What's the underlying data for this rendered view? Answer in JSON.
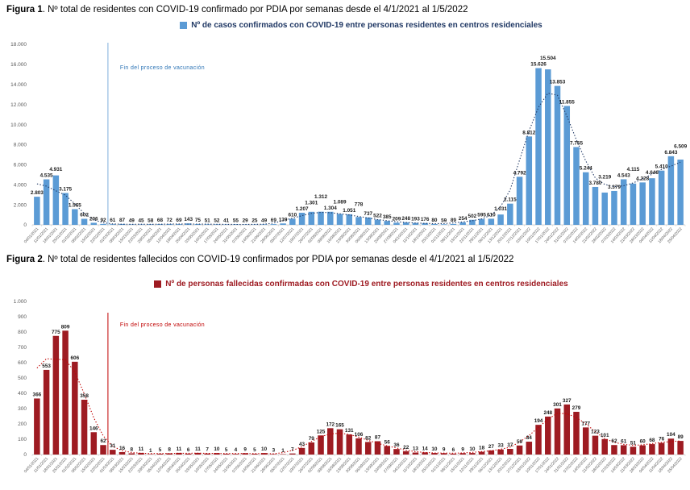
{
  "figures": [
    {
      "label": "Figura 1",
      "title_rest": ". Nº total de residentes con COVID-19 confirmado por PDIA por semanas desde el 4/1/2021 al 1/5/2022"
    },
    {
      "label": "Figura 2",
      "title_rest": ". Nº total de residentes fallecidos con COVID-19 confirmados por PDIA por semanas desde el 4/1/2021 al 1/5/2022"
    }
  ],
  "chart_data": [
    {
      "type": "bar",
      "legend": "Nº de casos confirmados con COVID-19 entre personas residentes en centros residenciales",
      "legend_position": "top",
      "grid": false,
      "xlabel": "",
      "ylabel": "",
      "ylim": [
        0,
        18000
      ],
      "ytick_labels": [
        "0",
        "2.000",
        "4.000",
        "6.000",
        "8.000",
        "10.000",
        "12.000",
        "14.000",
        "16.000",
        "18.000"
      ],
      "annotation": "Fin del proceso de vacunación",
      "vline_after_index": 8,
      "trendline": "dotted smoothed trend over weekly values",
      "colors": {
        "bar": "#5b9bd5",
        "trend": "#203864",
        "vline": "#7fafdc",
        "annotation": "#2e75b6",
        "legend_text": "#203864",
        "axis_text": "#595959",
        "data_label": "#1a1a1a"
      },
      "categories": [
        "04/01/2021",
        "11/01/2021",
        "18/01/2021",
        "25/01/2021",
        "01/02/2021",
        "08/02/2021",
        "15/02/2021",
        "22/02/2021",
        "01/03/2021",
        "08/03/2021",
        "15/03/2021",
        "22/03/2021",
        "29/03/2021",
        "05/04/2021",
        "12/04/2021",
        "19/04/2021",
        "26/04/2021",
        "03/05/2021",
        "10/05/2021",
        "17/05/2021",
        "24/05/2021",
        "31/05/2021",
        "07/06/2021",
        "14/06/2021",
        "21/06/2021",
        "28/06/2021",
        "05/07/2021",
        "12/07/2021",
        "19/07/2021",
        "26/07/2021",
        "02/08/2021",
        "09/08/2021",
        "16/08/2021",
        "23/08/2021",
        "30/08/2021",
        "06/09/2021",
        "13/09/2021",
        "20/09/2021",
        "27/09/2021",
        "04/10/2021",
        "11/10/2021",
        "18/10/2021",
        "25/10/2021",
        "01/11/2021",
        "08/11/2021",
        "15/11/2021",
        "22/11/2021",
        "29/11/2021",
        "06/12/2021",
        "13/12/2021",
        "20/12/2021",
        "27/12/2021",
        "03/01/2022",
        "10/01/2022",
        "17/01/2022",
        "24/01/2022",
        "31/01/2022",
        "07/02/2022",
        "14/02/2022",
        "21/02/2022",
        "28/02/2022",
        "07/03/2022",
        "14/03/2022",
        "21/03/2022",
        "28/03/2022",
        "04/04/2022",
        "11/04/2022",
        "18/04/2022",
        "25/04/2022"
      ],
      "values": [
        2803,
        4535,
        4931,
        3175,
        1565,
        602,
        206,
        92,
        61,
        87,
        49,
        45,
        58,
        68,
        72,
        69,
        143,
        75,
        51,
        52,
        41,
        55,
        29,
        25,
        49,
        69,
        139,
        610,
        1207,
        1301,
        1312,
        1304,
        1089,
        1051,
        778,
        737,
        522,
        385,
        209,
        248,
        193,
        176,
        80,
        59,
        89,
        254,
        502,
        595,
        610,
        1031,
        2115,
        4792,
        8812,
        15626,
        15504,
        13853,
        11855,
        7755,
        5244,
        3780,
        3219,
        3379,
        4543,
        4115,
        4228,
        4646,
        5410,
        6843,
        6509
      ]
    },
    {
      "type": "bar",
      "legend": "Nº de personas fallecidas confirmadas con COVID-19 entre personas residentes en centros residenciales",
      "legend_position": "top",
      "grid": false,
      "xlabel": "",
      "ylabel": "",
      "ylim": [
        0,
        1000
      ],
      "ytick_labels": [
        "0",
        "100",
        "200",
        "300",
        "400",
        "500",
        "600",
        "700",
        "800",
        "900",
        "1.000"
      ],
      "annotation": "Fin del proceso de vacunación",
      "vline_after_index": 8,
      "trendline": "dotted smoothed trend over weekly values",
      "colors": {
        "bar": "#9e1b22",
        "trend": "#c00000",
        "vline": "#c00000",
        "annotation": "#c00000",
        "legend_text": "#9e1b22",
        "axis_text": "#595959",
        "data_label": "#1a1a1a"
      },
      "categories": [
        "04/01/2021",
        "11/01/2021",
        "18/01/2021",
        "25/01/2021",
        "01/02/2021",
        "08/02/2021",
        "15/02/2021",
        "22/02/2021",
        "01/03/2021",
        "08/03/2021",
        "15/03/2021",
        "22/03/2021",
        "29/03/2021",
        "05/04/2021",
        "12/04/2021",
        "19/04/2021",
        "26/04/2021",
        "03/05/2021",
        "10/05/2021",
        "17/05/2021",
        "24/05/2021",
        "31/05/2021",
        "07/06/2021",
        "14/06/2021",
        "21/06/2021",
        "28/06/2021",
        "05/07/2021",
        "12/07/2021",
        "19/07/2021",
        "26/07/2021",
        "02/08/2021",
        "09/08/2021",
        "16/08/2021",
        "23/08/2021",
        "30/08/2021",
        "06/09/2021",
        "13/09/2021",
        "20/09/2021",
        "27/09/2021",
        "04/10/2021",
        "11/10/2021",
        "18/10/2021",
        "25/10/2021",
        "01/11/2021",
        "08/11/2021",
        "15/11/2021",
        "22/11/2021",
        "29/11/2021",
        "06/12/2021",
        "13/12/2021",
        "20/12/2021",
        "27/12/2021",
        "03/01/2022",
        "10/01/2022",
        "17/01/2022",
        "24/01/2022",
        "31/01/2022",
        "07/02/2022",
        "14/02/2022",
        "21/02/2022",
        "28/02/2022",
        "07/03/2022",
        "14/03/2022",
        "21/03/2022",
        "28/03/2022",
        "04/04/2022",
        "11/04/2022",
        "18/04/2022",
        "25/04/2022"
      ],
      "values": [
        366,
        553,
        775,
        809,
        606,
        358,
        146,
        62,
        31,
        16,
        8,
        11,
        1,
        5,
        8,
        11,
        6,
        11,
        7,
        10,
        5,
        4,
        9,
        5,
        10,
        3,
        1,
        7,
        43,
        79,
        125,
        172,
        165,
        131,
        106,
        82,
        87,
        56,
        36,
        22,
        13,
        14,
        10,
        9,
        6,
        9,
        10,
        18,
        27,
        33,
        37,
        59,
        84,
        194,
        248,
        301,
        327,
        279,
        177,
        123,
        101,
        62,
        61,
        51,
        60,
        68,
        76,
        104,
        89
      ]
    }
  ]
}
